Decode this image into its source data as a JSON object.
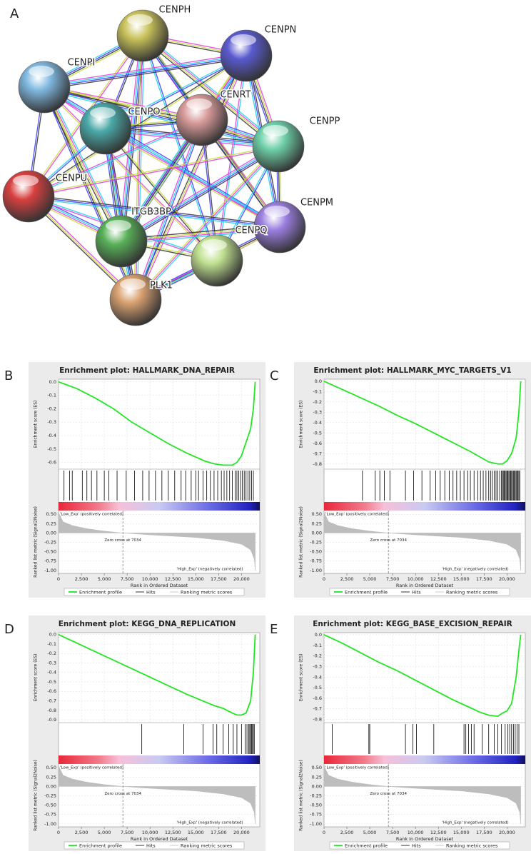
{
  "network": {
    "panel": "A",
    "nodes": [
      "CENPH",
      "CENPN",
      "CENPI",
      "CENPO",
      "CENRT",
      "CENPP",
      "CENPU",
      "CENPM",
      "ITGB3BP",
      "CENPQ",
      "PLK1"
    ]
  },
  "chart_data": [
    {
      "type": "gsea",
      "panel": "B",
      "title": "Enrichment plot: HALLMARK_DNA_REPAIR",
      "ylabel": "Enrichment score (ES)",
      "y2label": "Ranked list metric (Signal2Noise)",
      "xlabel": "Rank in Ordered Dataset",
      "xlim": [
        0,
        22000
      ],
      "xticks": [
        0,
        {
          "value": 2500,
          "label": "2,500"
        },
        {
          "value": 5000,
          "label": "5,000"
        },
        {
          "value": 7500,
          "label": "7,500"
        },
        {
          "value": 10000,
          "label": "10,000"
        },
        {
          "value": 12500,
          "label": "12,500"
        },
        {
          "value": 15000,
          "label": "15,000"
        },
        {
          "value": 17500,
          "label": "17,500"
        },
        {
          "value": 20000,
          "label": "20,000"
        }
      ],
      "ylim": [
        -0.65,
        0.02
      ],
      "yticks": [
        {
          "value": 0,
          "label": "0.0"
        },
        -0.1,
        -0.2,
        -0.3,
        -0.4,
        -0.5,
        -0.6
      ],
      "y2lim": [
        -1.08,
        0.6
      ],
      "y2ticks": [
        {
          "value": 0.5,
          "label": "0.50"
        },
        -0.25,
        {
          "value": 0,
          "label": "0.00"
        },
        {
          "value": 0.25,
          "label": "0.25"
        },
        {
          "value": -0.5,
          "label": "-0.50"
        },
        -0.75,
        {
          "value": -1,
          "label": "-1.00"
        }
      ],
      "zero_cross": 7034,
      "annotations": {
        "positive": "'Low_Exp' (positively correlated)",
        "zero": "Zero cross at 7034",
        "negative": "'High_Exp' (negatively correlated)"
      },
      "series": [
        {
          "name": "Enrichment profile",
          "color": "#22e622",
          "x": [
            0,
            2000,
            4000,
            6000,
            8000,
            10000,
            12000,
            14000,
            16000,
            17000,
            18000,
            19000,
            19500,
            20000,
            20500,
            21000,
            21300,
            21500
          ],
          "values": [
            0,
            -0.05,
            -0.12,
            -0.2,
            -0.3,
            -0.38,
            -0.46,
            -0.53,
            -0.59,
            -0.61,
            -0.62,
            -0.62,
            -0.6,
            -0.55,
            -0.45,
            -0.35,
            -0.2,
            0
          ]
        },
        {
          "name": "Hits",
          "color": "#000000",
          "x": [
            600,
            1200,
            1500,
            2600,
            3100,
            3600,
            4200,
            5000,
            5500,
            6400,
            7400,
            8300,
            9200,
            9900,
            10600,
            11300,
            12000,
            12700,
            13400,
            13900,
            14500,
            15000,
            15300,
            15800,
            16200,
            16600,
            17000,
            17400,
            17800,
            18100,
            18400,
            18700,
            19000,
            19300,
            19500,
            19700,
            19900,
            20100,
            20300,
            20500,
            20700,
            20900,
            21100,
            21300
          ]
        },
        {
          "name": "Ranking metric scores",
          "color": "#bdbdbd",
          "axis": "y2",
          "x": [
            0,
            500,
            1500,
            3000,
            5000,
            7034,
            10000,
            15000,
            18000,
            20000,
            21000,
            21400,
            21500
          ],
          "values": [
            0.55,
            0.3,
            0.2,
            0.12,
            0.05,
            0,
            -0.05,
            -0.12,
            -0.2,
            -0.3,
            -0.45,
            -0.7,
            -1
          ]
        }
      ]
    },
    {
      "type": "gsea",
      "panel": "C",
      "title": "Enrichment plot: HALLMARK_MYC_TARGETS_V1",
      "ylabel": "Enrichment score (ES)",
      "y2label": "Ranked list metric (Signal2Noise)",
      "xlabel": "Rank in Ordered Dataset",
      "xlim": [
        0,
        22000
      ],
      "xticks": [
        0,
        {
          "value": 2500,
          "label": "2,500"
        },
        {
          "value": 5000,
          "label": "5,000"
        },
        {
          "value": 7500,
          "label": "7,500"
        },
        {
          "value": 10000,
          "label": "10,000"
        },
        {
          "value": 12500,
          "label": "12,500"
        },
        {
          "value": 15000,
          "label": "15,000"
        },
        {
          "value": 17500,
          "label": "17,500"
        },
        {
          "value": 20000,
          "label": "20,000"
        }
      ],
      "ylim": [
        -0.85,
        0.02
      ],
      "yticks": [
        {
          "value": 0,
          "label": "0.0"
        },
        -0.1,
        -0.2,
        -0.3,
        -0.4,
        -0.5,
        -0.6,
        -0.7,
        -0.8
      ],
      "y2lim": [
        -1.08,
        0.6
      ],
      "y2ticks": [
        {
          "value": 0.5,
          "label": "0.50"
        },
        {
          "value": 0.25,
          "label": "0.25"
        },
        {
          "value": 0,
          "label": "0.00"
        },
        -0.25,
        {
          "value": -0.5,
          "label": "-0.50"
        },
        -0.75,
        {
          "value": -1,
          "label": "-1.00"
        }
      ],
      "zero_cross": 7034,
      "annotations": {
        "positive": "'Low_Exp' (positively correlated)",
        "zero": "Zero cross at 7034",
        "negative": "'High_Exp' (negatively correlated)"
      },
      "series": [
        {
          "name": "Enrichment profile",
          "color": "#22e622",
          "x": [
            0,
            2000,
            4000,
            6000,
            8000,
            10000,
            12000,
            14000,
            16000,
            17000,
            18000,
            19000,
            19500,
            20000,
            20500,
            21000,
            21300,
            21500
          ],
          "values": [
            0,
            -0.08,
            -0.16,
            -0.24,
            -0.33,
            -0.41,
            -0.5,
            -0.59,
            -0.68,
            -0.73,
            -0.78,
            -0.8,
            -0.8,
            -0.77,
            -0.7,
            -0.55,
            -0.3,
            0
          ]
        },
        {
          "name": "Hits",
          "color": "#000000",
          "x": [
            4200,
            5600,
            6100,
            6600,
            7200,
            8900,
            9800,
            10700,
            11600,
            12200,
            12700,
            13200,
            13700,
            14100,
            14500,
            14900,
            15300,
            15700,
            16000,
            16400,
            16800,
            17100,
            17400,
            17700,
            18000,
            18200,
            18400,
            18600,
            18800,
            19000,
            19200,
            19400,
            19500,
            19600,
            19700,
            19800,
            19900,
            20000,
            20100,
            20200,
            20300,
            20400,
            20500,
            20600,
            20700,
            20800,
            20900,
            21000,
            21100,
            21200,
            21300,
            21400
          ]
        },
        {
          "name": "Ranking metric scores",
          "color": "#bdbdbd",
          "axis": "y2",
          "x": [
            0,
            500,
            1500,
            3000,
            5000,
            7034,
            10000,
            15000,
            18000,
            20000,
            21000,
            21400,
            21500
          ],
          "values": [
            0.55,
            0.3,
            0.2,
            0.12,
            0.05,
            0,
            -0.05,
            -0.12,
            -0.2,
            -0.3,
            -0.45,
            -0.7,
            -1
          ]
        }
      ]
    },
    {
      "type": "gsea",
      "panel": "D",
      "title": "Enrichment plot: KEGG_DNA_REPLICATION",
      "ylabel": "Enrichment score (ES)",
      "y2label": "Ranked list metric (Signal2Noise)",
      "xlabel": "Rank in Ordered Dataset",
      "xlim": [
        0,
        22000
      ],
      "xticks": [
        0,
        {
          "value": 2500,
          "label": "2,500"
        },
        {
          "value": 5000,
          "label": "5,000"
        },
        {
          "value": 7500,
          "label": "7,500"
        },
        {
          "value": 10000,
          "label": "10,000"
        },
        {
          "value": 12500,
          "label": "12,500"
        },
        {
          "value": 15000,
          "label": "15,000"
        },
        {
          "value": 17500,
          "label": "17,500"
        },
        {
          "value": 20000,
          "label": "20,000"
        }
      ],
      "ylim": [
        -0.93,
        0.02
      ],
      "yticks": [
        {
          "value": 0,
          "label": "0.0"
        },
        -0.1,
        -0.2,
        -0.3,
        -0.4,
        -0.5,
        -0.6,
        -0.7,
        -0.8,
        -0.9
      ],
      "y2lim": [
        -1.08,
        0.6
      ],
      "y2ticks": [
        {
          "value": 0.5,
          "label": "0.50"
        },
        {
          "value": 0.25,
          "label": "0.25"
        },
        {
          "value": 0,
          "label": "0.00"
        },
        -0.25,
        {
          "value": -0.5,
          "label": "-0.50"
        },
        -0.75,
        {
          "value": -1,
          "label": "-1.00"
        }
      ],
      "zero_cross": 7034,
      "annotations": {
        "positive": "'Low_Exp' (positively correlated)",
        "zero": "Zero cross at 7034",
        "negative": "'High_Exp' (negatively correlated)"
      },
      "series": [
        {
          "name": "Enrichment profile",
          "color": "#22e622",
          "x": [
            0,
            2000,
            4000,
            6000,
            8000,
            10000,
            12000,
            14000,
            16000,
            17000,
            18000,
            19000,
            19500,
            20000,
            20500,
            21000,
            21300,
            21500
          ],
          "values": [
            0,
            -0.09,
            -0.18,
            -0.27,
            -0.36,
            -0.45,
            -0.54,
            -0.63,
            -0.71,
            -0.75,
            -0.78,
            -0.83,
            -0.85,
            -0.85,
            -0.83,
            -0.7,
            -0.4,
            0
          ]
        },
        {
          "name": "Hits",
          "color": "#000000",
          "x": [
            9100,
            13700,
            15800,
            16900,
            17300,
            18000,
            18600,
            19100,
            19500,
            20000,
            20400,
            20600,
            20800,
            20900,
            21000,
            21100,
            21200,
            21300,
            21400
          ]
        },
        {
          "name": "Ranking metric scores",
          "color": "#bdbdbd",
          "axis": "y2",
          "x": [
            0,
            500,
            1500,
            3000,
            5000,
            7034,
            10000,
            15000,
            18000,
            20000,
            21000,
            21400,
            21500
          ],
          "values": [
            0.55,
            0.3,
            0.2,
            0.12,
            0.05,
            0,
            -0.05,
            -0.12,
            -0.2,
            -0.3,
            -0.45,
            -0.7,
            -1
          ]
        }
      ]
    },
    {
      "type": "gsea",
      "panel": "E",
      "title": "Enrichment plot: KEGG_BASE_EXCISION_REPAIR",
      "ylabel": "Enrichment score (ES)",
      "y2label": "Ranked list metric (Signal2Noise)",
      "xlabel": "Rank in Ordered Dataset",
      "xlim": [
        0,
        22000
      ],
      "xticks": [
        0,
        {
          "value": 2500,
          "label": "2,500"
        },
        {
          "value": 5000,
          "label": "5,000"
        },
        {
          "value": 7500,
          "label": "7,500"
        },
        {
          "value": 10000,
          "label": "10,000"
        },
        {
          "value": 12500,
          "label": "12,500"
        },
        {
          "value": 15000,
          "label": "15,000"
        },
        {
          "value": 17500,
          "label": "17,500"
        },
        {
          "value": 20000,
          "label": "20,000"
        }
      ],
      "ylim": [
        -0.83,
        0.02
      ],
      "yticks": [
        {
          "value": 0,
          "label": "0.0"
        },
        -0.1,
        -0.2,
        -0.3,
        -0.4,
        -0.5,
        -0.6,
        -0.7,
        -0.8
      ],
      "y2lim": [
        -1.08,
        0.6
      ],
      "y2ticks": [
        {
          "value": 0.5,
          "label": "0.50"
        },
        {
          "value": 0.25,
          "label": "0.25"
        },
        {
          "value": 0,
          "label": "0.00"
        },
        -0.25,
        {
          "value": -0.5,
          "label": "-0.50"
        },
        -0.75,
        {
          "value": -1,
          "label": "-1.00"
        }
      ],
      "zero_cross": 7034,
      "annotations": {
        "positive": "'Low_Exp' (positively correlated)",
        "zero": "Zero cross at 7034",
        "negative": "'High_Exp' (negatively correlated)"
      },
      "series": [
        {
          "name": "Enrichment profile",
          "color": "#22e622",
          "x": [
            0,
            2000,
            4000,
            6000,
            8000,
            10000,
            12000,
            14000,
            16000,
            17000,
            18000,
            19000,
            19500,
            20000,
            20500,
            21000,
            21300,
            21500
          ],
          "values": [
            0,
            -0.08,
            -0.17,
            -0.26,
            -0.34,
            -0.43,
            -0.52,
            -0.61,
            -0.69,
            -0.73,
            -0.76,
            -0.77,
            -0.74,
            -0.72,
            -0.65,
            -0.4,
            -0.15,
            0
          ]
        },
        {
          "name": "Hits",
          "color": "#000000",
          "x": [
            900,
            4900,
            5000,
            8900,
            9700,
            10100,
            12000,
            15300,
            15500,
            15800,
            16100,
            16400,
            17300,
            18000,
            18600,
            19000,
            19400,
            19800,
            20100,
            20300,
            20500,
            20700,
            20900,
            21100,
            21300
          ]
        },
        {
          "name": "Ranking metric scores",
          "color": "#bdbdbd",
          "axis": "y2",
          "x": [
            0,
            500,
            1500,
            3000,
            5000,
            7034,
            10000,
            15000,
            18000,
            20000,
            21000,
            21400,
            21500
          ],
          "values": [
            0.55,
            0.3,
            0.2,
            0.12,
            0.05,
            0,
            -0.05,
            -0.12,
            -0.2,
            -0.3,
            -0.45,
            -0.7,
            -1
          ]
        }
      ]
    }
  ]
}
